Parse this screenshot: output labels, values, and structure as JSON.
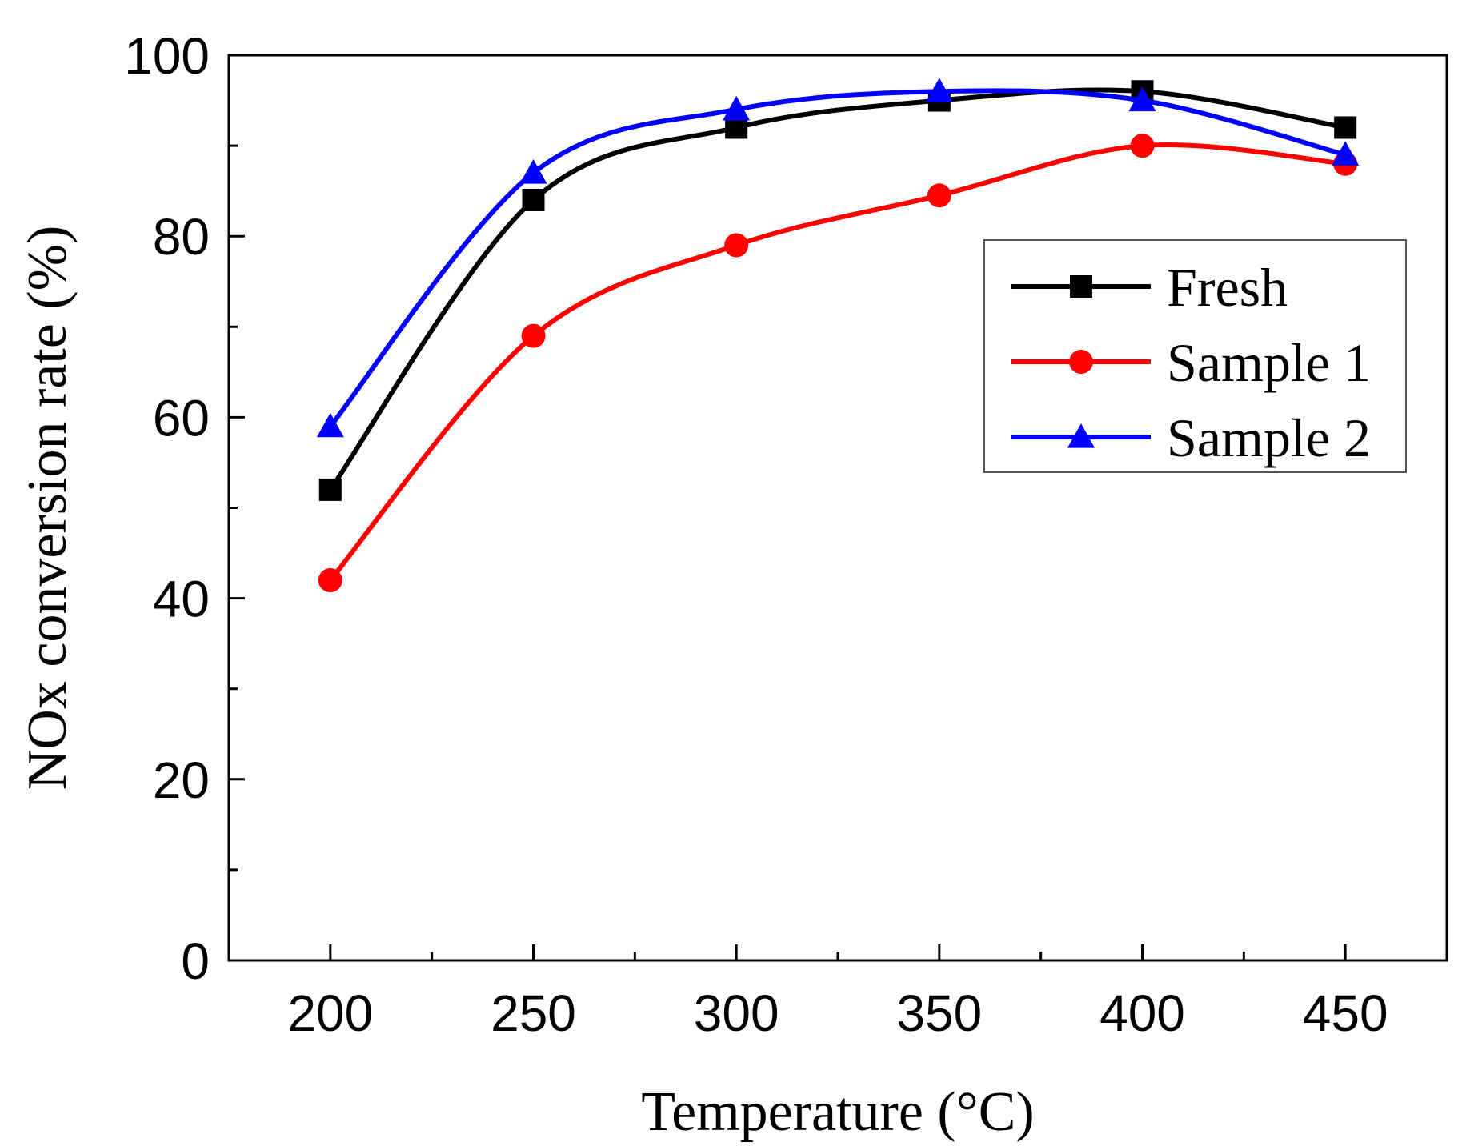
{
  "chart_data": {
    "type": "line",
    "title": "",
    "xlabel": "Temperature (°C)",
    "ylabel": "NOx conversion rate (%)",
    "x": [
      200,
      250,
      300,
      350,
      400,
      450
    ],
    "xlim": [
      175,
      475
    ],
    "ylim": [
      0,
      100
    ],
    "xticks": [
      200,
      250,
      300,
      350,
      400,
      450
    ],
    "yticks": [
      0,
      20,
      40,
      60,
      80,
      100
    ],
    "grid": false,
    "legend_position": "upper-right",
    "series": [
      {
        "name": "Fresh",
        "color": "#000000",
        "marker": "square",
        "values": [
          52,
          84,
          92,
          95,
          96,
          92
        ]
      },
      {
        "name": "Sample 1",
        "color": "#ff0000",
        "marker": "circle",
        "values": [
          42,
          69,
          79,
          84.5,
          90,
          88
        ]
      },
      {
        "name": "Sample 2",
        "color": "#0000ff",
        "marker": "triangle",
        "values": [
          59,
          87,
          94,
          96,
          95,
          89
        ]
      }
    ]
  }
}
